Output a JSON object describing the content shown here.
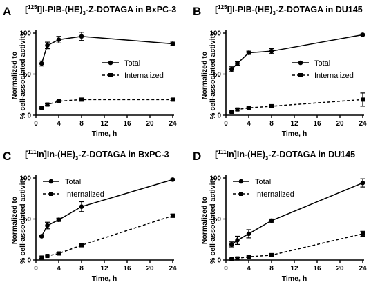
{
  "chart_data": [
    {
      "type": "line",
      "panel_letter": "A",
      "title_parts": [
        "[",
        "125",
        "I]I-PIB-(HE)",
        "3",
        "-Z-DOTAGA in BxPC-3"
      ],
      "xlabel": "Time, h",
      "ylabel_lines": [
        "Normalized to",
        "% cell-associated activity"
      ],
      "xlim": [
        0,
        24
      ],
      "ylim": [
        0,
        100
      ],
      "xticks": [
        "0",
        "4",
        "8",
        "12",
        "16",
        "20",
        "24"
      ],
      "yticks": [
        "0",
        "50",
        "100"
      ],
      "legend_position": "middle-right",
      "series": [
        {
          "name": "Total",
          "marker": "circle",
          "line": "solid",
          "x": [
            1,
            2,
            4,
            8,
            24
          ],
          "y": [
            63,
            85,
            92,
            96,
            87
          ],
          "err": [
            3,
            4,
            4,
            5,
            2
          ]
        },
        {
          "name": "Internalized",
          "marker": "square",
          "line": "dashed",
          "x": [
            1,
            2,
            4,
            8,
            24
          ],
          "y": [
            9,
            13,
            17,
            19,
            19
          ],
          "err": [
            1,
            1,
            1,
            1,
            1
          ]
        }
      ]
    },
    {
      "type": "line",
      "panel_letter": "B",
      "title_parts": [
        "[",
        "125",
        "I]I-PIB-(HE)",
        "3",
        "-Z-DOTAGA in DU145"
      ],
      "xlabel": "Time, h",
      "ylabel_lines": [
        "Normalized to",
        "% cell-associated activity"
      ],
      "xlim": [
        0,
        24
      ],
      "ylim": [
        0,
        100
      ],
      "xticks": [
        "0",
        "4",
        "8",
        "12",
        "16",
        "20",
        "24"
      ],
      "yticks": [
        "0",
        "50",
        "100"
      ],
      "legend_position": "middle-right",
      "series": [
        {
          "name": "Total",
          "marker": "circle",
          "line": "solid",
          "x": [
            1,
            2,
            4,
            8,
            24
          ],
          "y": [
            56,
            63,
            76,
            78,
            98
          ],
          "err": [
            3,
            2,
            2,
            3,
            1
          ]
        },
        {
          "name": "Internalized",
          "marker": "square",
          "line": "dashed",
          "x": [
            1,
            2,
            4,
            8,
            24
          ],
          "y": [
            4,
            7,
            9,
            11,
            19
          ],
          "err": [
            1,
            1,
            1,
            1,
            8
          ]
        }
      ]
    },
    {
      "type": "line",
      "panel_letter": "C",
      "title_parts": [
        "[",
        "111",
        "In]In-(HE)",
        "3",
        "-Z-DOTAGA in BxPC-3"
      ],
      "xlabel": "Time, h",
      "ylabel_lines": [
        "Normalized to",
        "% cell-associated activity"
      ],
      "xlim": [
        0,
        24
      ],
      "ylim": [
        0,
        100
      ],
      "xticks": [
        "0",
        "4",
        "8",
        "12",
        "16",
        "20",
        "24"
      ],
      "yticks": [
        "0",
        "50",
        "100"
      ],
      "legend_position": "top-left",
      "series": [
        {
          "name": "Total",
          "marker": "circle",
          "line": "solid",
          "x": [
            1,
            2,
            4,
            8,
            24
          ],
          "y": [
            29,
            42,
            49,
            65,
            98
          ],
          "err": [
            1,
            4,
            2,
            6,
            1
          ]
        },
        {
          "name": "Internalized",
          "marker": "square",
          "line": "dashed",
          "x": [
            1,
            2,
            4,
            8,
            24
          ],
          "y": [
            3,
            5,
            8,
            18,
            54
          ],
          "err": [
            1,
            1,
            1,
            1,
            2
          ]
        }
      ]
    },
    {
      "type": "line",
      "panel_letter": "D",
      "title_parts": [
        "[",
        "111",
        "In]In-(HE)",
        "3",
        "-Z-DOTAGA in DU145"
      ],
      "xlabel": "Time, h",
      "ylabel_lines": [
        "Normalized to",
        "% cell-associated activity"
      ],
      "xlim": [
        0,
        24
      ],
      "ylim": [
        0,
        100
      ],
      "xticks": [
        "0",
        "4",
        "8",
        "12",
        "16",
        "20",
        "24"
      ],
      "yticks": [
        "0",
        "50",
        "100"
      ],
      "legend_position": "top-left",
      "series": [
        {
          "name": "Total",
          "marker": "circle",
          "line": "solid",
          "x": [
            1,
            2,
            4,
            8,
            24
          ],
          "y": [
            19,
            24,
            32,
            48,
            94
          ],
          "err": [
            3,
            5,
            5,
            2,
            5
          ]
        },
        {
          "name": "Internalized",
          "marker": "square",
          "line": "dashed",
          "x": [
            1,
            2,
            4,
            8,
            24
          ],
          "y": [
            1,
            2,
            4,
            6,
            32
          ],
          "err": [
            1,
            1,
            1,
            1,
            3
          ]
        }
      ]
    }
  ]
}
